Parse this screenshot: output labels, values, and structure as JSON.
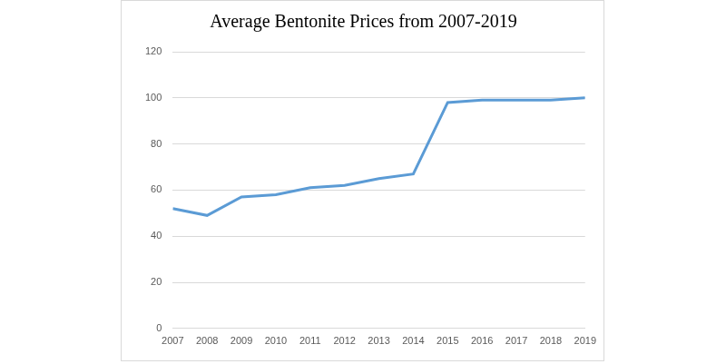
{
  "chart_data": {
    "type": "line",
    "title": "Average Bentonite Prices from 2007-2019",
    "categories": [
      "2007",
      "2008",
      "2009",
      "2010",
      "2011",
      "2012",
      "2013",
      "2014",
      "2015",
      "2016",
      "2017",
      "2018",
      "2019"
    ],
    "values": [
      52,
      49,
      57,
      58,
      61,
      62,
      65,
      67,
      98,
      99,
      99,
      99,
      100
    ],
    "color": "#5b9bd5",
    "marker": "none",
    "ylim": [
      0,
      120
    ],
    "yticks": [
      0,
      20,
      40,
      60,
      80,
      100,
      120
    ],
    "grid": true
  }
}
